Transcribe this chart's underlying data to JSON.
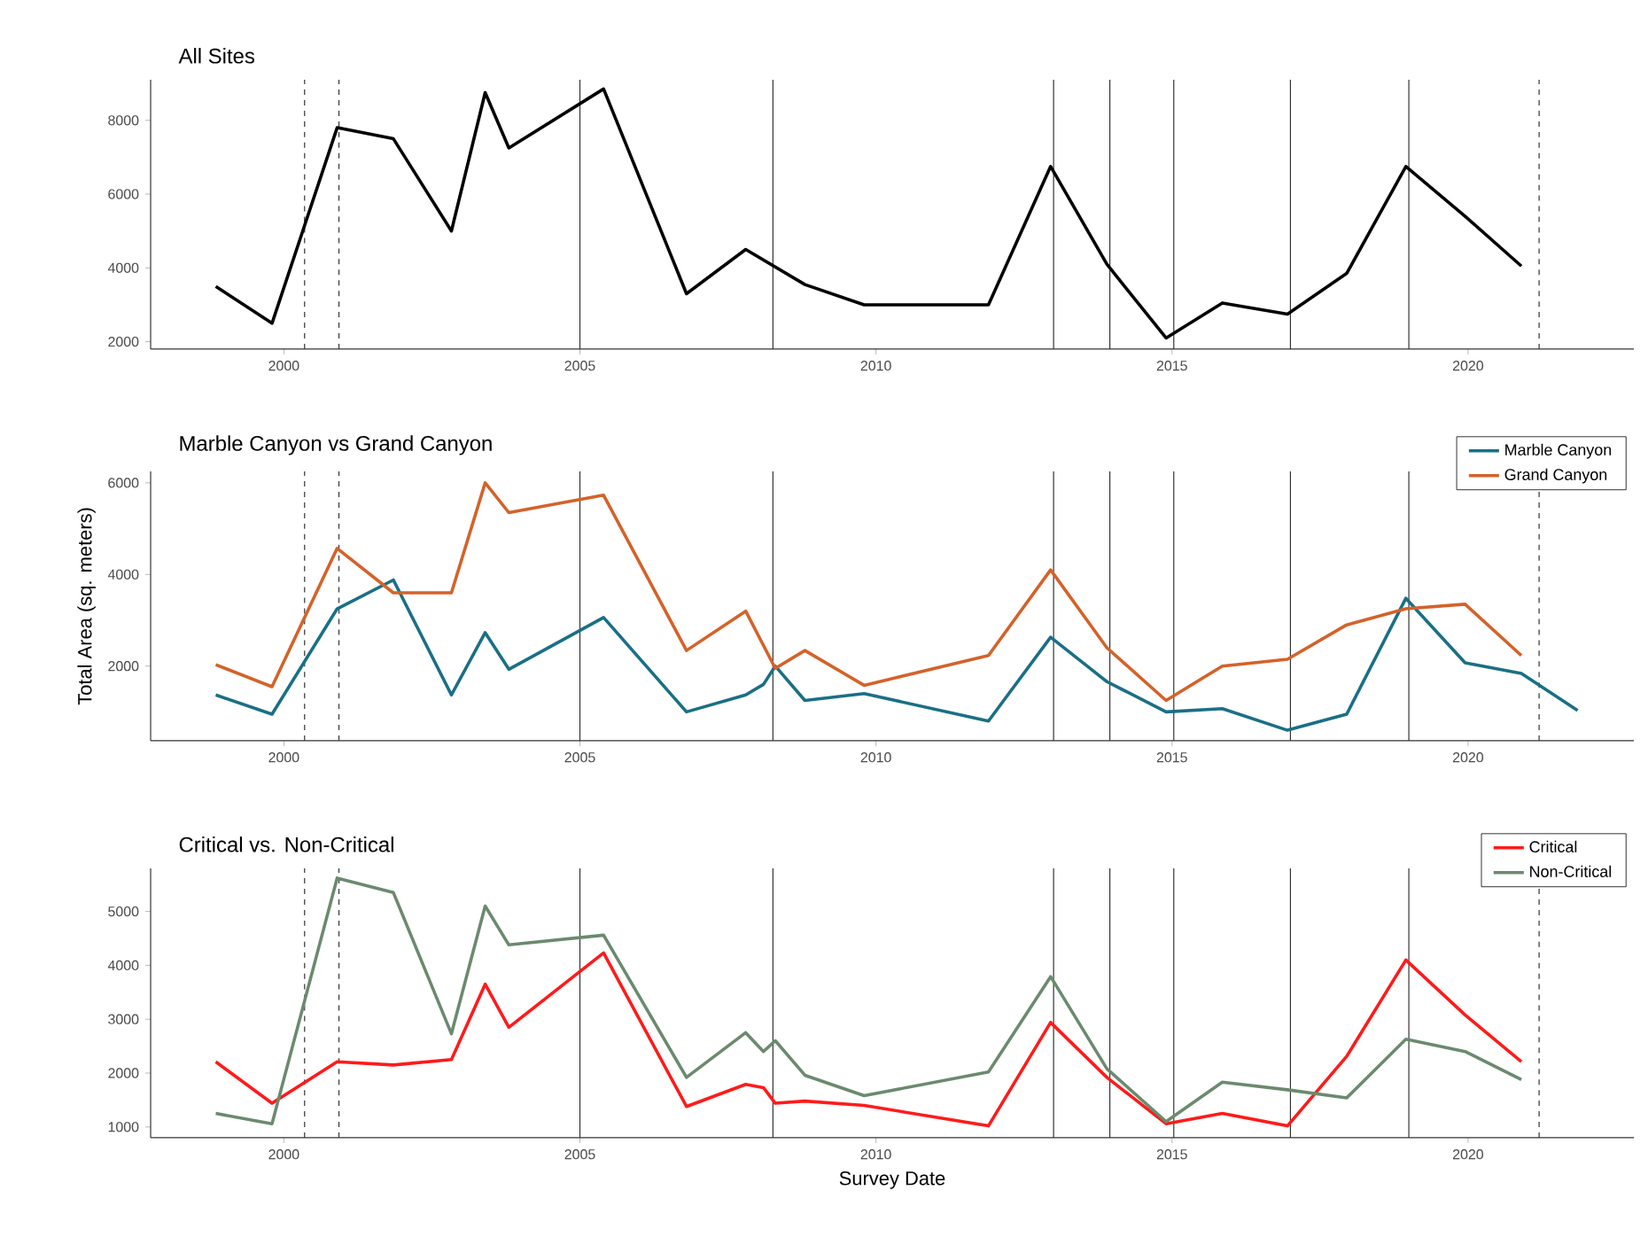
{
  "chart_data": [
    {
      "type": "line",
      "title": "All Sites",
      "xlim": [
        1997.75,
        2022.8
      ],
      "xticks": [
        2000,
        2005,
        2010,
        2015,
        2020
      ],
      "ylim": [
        1800,
        9100
      ],
      "yticks": [
        2000,
        4000,
        6000,
        8000
      ],
      "x": [
        1998.85,
        1999.8,
        2000.9,
        2001.85,
        2002.83,
        2003.4,
        2003.8,
        2005.4,
        2006.8,
        2007.8,
        2008.8,
        2009.8,
        2011.9,
        2012.95,
        2013.9,
        2014.9,
        2015.85,
        2016.95,
        2017.95,
        2018.95,
        2019.95,
        2020.9
      ],
      "series": [
        {
          "color": "#000000",
          "values": [
            3500,
            2500,
            7800,
            7500,
            5000,
            8750,
            7250,
            8850,
            3300,
            4500,
            3550,
            3000,
            3000,
            6750,
            4100,
            2100,
            3050,
            2750,
            3850,
            6750,
            5400,
            4050
          ]
        }
      ],
      "ref_lines": [
        {
          "axis": "x",
          "value": 2000.35,
          "line_style": "dashed",
          "color": "#333333"
        },
        {
          "axis": "x",
          "value": 2000.93,
          "line_style": "dashed",
          "color": "#333333"
        },
        {
          "axis": "x",
          "value": 2005.0,
          "line_style": "solid",
          "color": "#333333"
        },
        {
          "axis": "x",
          "value": 2008.26,
          "line_style": "solid",
          "color": "#333333"
        },
        {
          "axis": "x",
          "value": 2013.0,
          "line_style": "solid",
          "color": "#333333"
        },
        {
          "axis": "x",
          "value": 2013.95,
          "line_style": "solid",
          "color": "#333333"
        },
        {
          "axis": "x",
          "value": 2015.03,
          "line_style": "solid",
          "color": "#333333"
        },
        {
          "axis": "x",
          "value": 2017.0,
          "line_style": "solid",
          "color": "#333333"
        },
        {
          "axis": "x",
          "value": 2019.0,
          "line_style": "solid",
          "color": "#333333"
        },
        {
          "axis": "x",
          "value": 2021.2,
          "line_style": "dashed",
          "color": "#333333"
        }
      ]
    },
    {
      "type": "line",
      "title": "Marble Canyon vs Grand Canyon",
      "ylabel": "Total Area (sq. meters)",
      "xlim": [
        1997.75,
        2022.8
      ],
      "xticks": [
        2000,
        2005,
        2010,
        2015,
        2020
      ],
      "ylim": [
        370,
        6250
      ],
      "yticks": [
        2000,
        4000,
        6000
      ],
      "legend": "top right",
      "series": [
        {
          "name": "Marble Canyon",
          "color": "#1a6f86",
          "x": [
            1998.85,
            1999.8,
            2000.9,
            2001.85,
            2002.83,
            2003.4,
            2003.8,
            2005.4,
            2006.8,
            2007.8,
            2008.1,
            2008.3,
            2008.8,
            2009.8,
            2011.9,
            2012.95,
            2013.9,
            2014.9,
            2015.85,
            2016.95,
            2017.95,
            2018.95,
            2019.95,
            2020.9,
            2021.85
          ],
          "values": [
            1370,
            950,
            3250,
            3880,
            1370,
            2730,
            1930,
            3060,
            1000,
            1370,
            1600,
            2000,
            1250,
            1400,
            800,
            2630,
            1660,
            1000,
            1070,
            600,
            950,
            3480,
            2070,
            1840,
            1030
          ]
        },
        {
          "name": "Grand Canyon",
          "color": "#d4622a",
          "x": [
            1998.85,
            1999.8,
            2000.9,
            2001.85,
            2002.83,
            2003.4,
            2003.8,
            2005.4,
            2006.8,
            2007.8,
            2008.3,
            2008.8,
            2009.8,
            2011.9,
            2012.95,
            2013.9,
            2014.9,
            2015.85,
            2016.95,
            2017.95,
            2018.95,
            2019.95,
            2020.9
          ],
          "values": [
            2030,
            1550,
            4570,
            3600,
            3600,
            6000,
            5350,
            5730,
            2340,
            3200,
            1950,
            2340,
            1580,
            2230,
            4100,
            2400,
            1250,
            2000,
            2150,
            2900,
            3250,
            3350,
            2230
          ]
        }
      ],
      "ref_lines": [
        {
          "axis": "x",
          "value": 2000.35,
          "line_style": "dashed",
          "color": "#333333"
        },
        {
          "axis": "x",
          "value": 2000.93,
          "line_style": "dashed",
          "color": "#333333"
        },
        {
          "axis": "x",
          "value": 2005.0,
          "line_style": "solid",
          "color": "#333333"
        },
        {
          "axis": "x",
          "value": 2008.26,
          "line_style": "solid",
          "color": "#333333"
        },
        {
          "axis": "x",
          "value": 2013.0,
          "line_style": "solid",
          "color": "#333333"
        },
        {
          "axis": "x",
          "value": 2013.95,
          "line_style": "solid",
          "color": "#333333"
        },
        {
          "axis": "x",
          "value": 2015.03,
          "line_style": "solid",
          "color": "#333333"
        },
        {
          "axis": "x",
          "value": 2017.0,
          "line_style": "solid",
          "color": "#333333"
        },
        {
          "axis": "x",
          "value": 2019.0,
          "line_style": "solid",
          "color": "#333333"
        },
        {
          "axis": "x",
          "value": 2021.2,
          "line_style": "dashed",
          "color": "#333333"
        }
      ]
    },
    {
      "type": "line",
      "title": "Critical vs. Non-Critical",
      "xlabel": "Survey Date",
      "xlim": [
        1997.75,
        2022.8
      ],
      "xticks": [
        2000,
        2005,
        2010,
        2015,
        2020
      ],
      "ylim": [
        800,
        5800
      ],
      "yticks": [
        1000,
        2000,
        3000,
        4000,
        5000
      ],
      "legend": "top right",
      "x": [
        1998.85,
        1999.8,
        2000.9,
        2001.85,
        2002.83,
        2003.4,
        2003.8,
        2005.4,
        2006.8,
        2007.8,
        2008.1,
        2008.3,
        2008.8,
        2009.8,
        2011.9,
        2012.95,
        2013.9,
        2014.9,
        2015.85,
        2016.95,
        2017.95,
        2018.95,
        2019.95,
        2020.9
      ],
      "series": [
        {
          "name": "Critical",
          "color": "#ff1a1a",
          "values": [
            2210,
            1440,
            2210,
            2150,
            2250,
            3650,
            2850,
            4230,
            1380,
            1790,
            1730,
            1440,
            1480,
            1400,
            1020,
            2940,
            1920,
            1060,
            1250,
            1020,
            2310,
            4100,
            3080,
            2210
          ]
        },
        {
          "name": "Non-Critical",
          "color": "#6b8a6e",
          "values": [
            1250,
            1060,
            5620,
            5350,
            2730,
            5100,
            4380,
            4560,
            1920,
            2750,
            2400,
            2600,
            1960,
            1580,
            2020,
            3790,
            2080,
            1100,
            1830,
            1690,
            1540,
            2630,
            2400,
            1880
          ]
        }
      ],
      "ref_lines": [
        {
          "axis": "x",
          "value": 2000.35,
          "line_style": "dashed",
          "color": "#333333"
        },
        {
          "axis": "x",
          "value": 2000.93,
          "line_style": "dashed",
          "color": "#333333"
        },
        {
          "axis": "x",
          "value": 2005.0,
          "line_style": "solid",
          "color": "#333333"
        },
        {
          "axis": "x",
          "value": 2008.26,
          "line_style": "solid",
          "color": "#333333"
        },
        {
          "axis": "x",
          "value": 2013.0,
          "line_style": "solid",
          "color": "#333333"
        },
        {
          "axis": "x",
          "value": 2013.95,
          "line_style": "solid",
          "color": "#333333"
        },
        {
          "axis": "x",
          "value": 2015.03,
          "line_style": "solid",
          "color": "#333333"
        },
        {
          "axis": "x",
          "value": 2017.0,
          "line_style": "solid",
          "color": "#333333"
        },
        {
          "axis": "x",
          "value": 2019.0,
          "line_style": "solid",
          "color": "#333333"
        },
        {
          "axis": "x",
          "value": 2021.2,
          "line_style": "dashed",
          "color": "#333333"
        }
      ]
    }
  ]
}
